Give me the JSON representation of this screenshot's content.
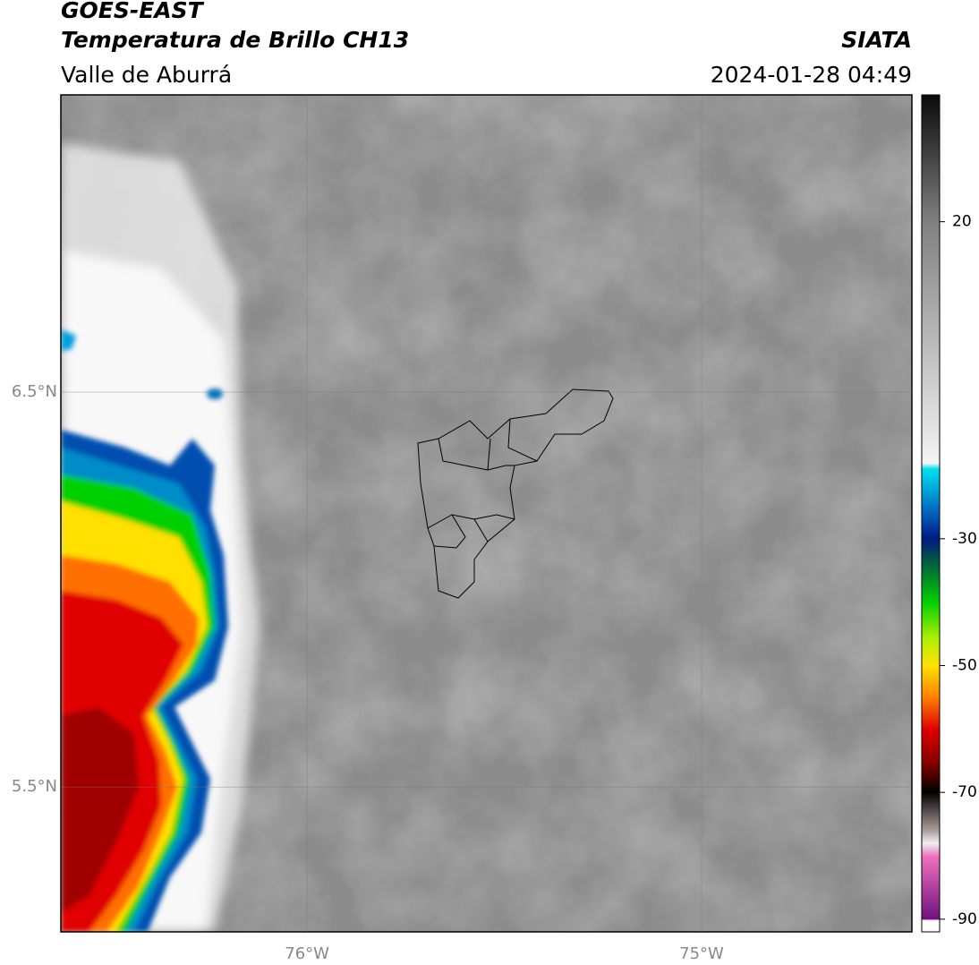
{
  "header": {
    "title": "GOES-EAST",
    "subtitle": "Temperatura de Brillo CH13",
    "region": "Valle de Aburrá",
    "source": "SIATA",
    "datetime": "2024-01-28 04:49"
  },
  "map": {
    "lat_range": [
      5.133,
      7.253
    ],
    "lon_range": [
      -76.624,
      -74.467
    ],
    "lat_ticks": [
      {
        "value": 6.5,
        "label": "6.5°N"
      },
      {
        "value": 5.5,
        "label": "5.5°N"
      }
    ],
    "lon_ticks": [
      {
        "value": -76,
        "label": "76°W"
      },
      {
        "value": -75,
        "label": "75°W"
      }
    ]
  },
  "colorbar": {
    "range": [
      -92,
      40
    ],
    "ticks": [
      20,
      -30,
      -50,
      -70,
      -90
    ]
  }
}
